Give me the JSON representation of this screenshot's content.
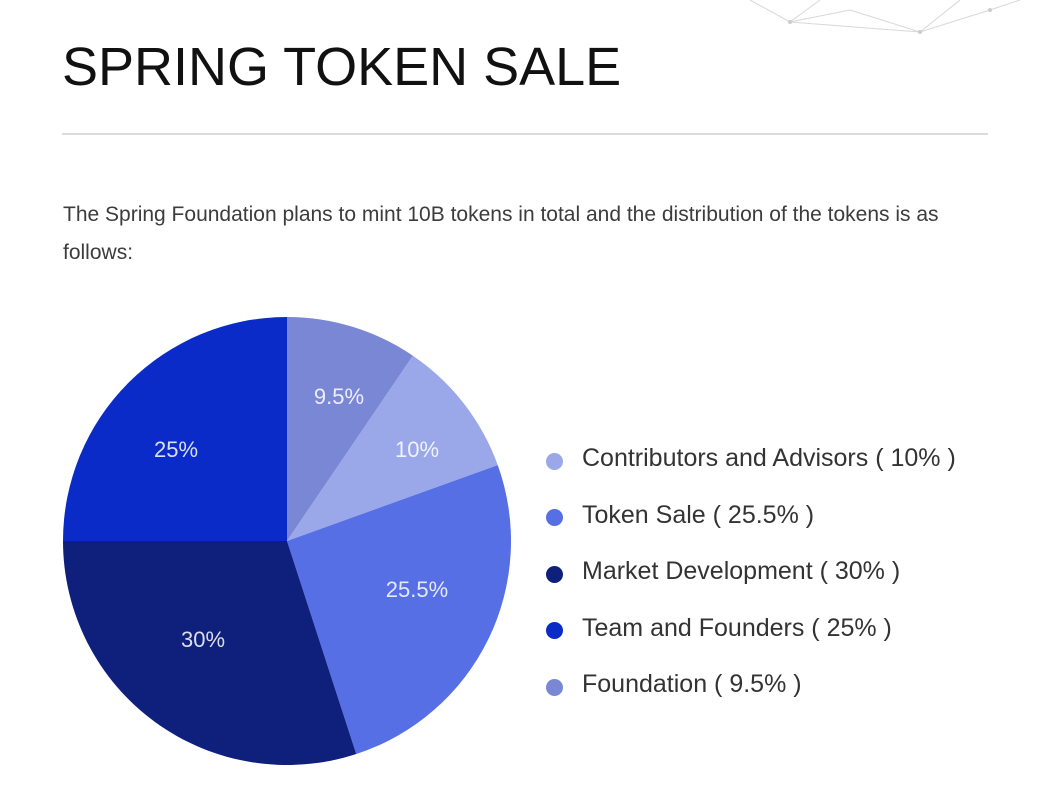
{
  "title": "SPRING TOKEN SALE",
  "intro": "The Spring Foundation plans to mint 10B tokens in total and the distribution of the tokens is as follows:",
  "chart_data": {
    "type": "pie",
    "title": "",
    "start": "Foundation slice starts at 12 o'clock, clockwise",
    "slices": [
      {
        "key": "foundation",
        "label": "Foundation ( 9.5% )",
        "value": 9.5,
        "data_label": "9.5%",
        "color": "#7a87d4"
      },
      {
        "key": "contributors",
        "label": "Contributors and Advisors ( 10% )",
        "value": 10,
        "data_label": "10%",
        "color": "#9aa7e8"
      },
      {
        "key": "token-sale",
        "label": "Token Sale ( 25.5% )",
        "value": 25.5,
        "data_label": "25.5%",
        "color": "#566fe4"
      },
      {
        "key": "market-development",
        "label": "Market Development ( 30% )",
        "value": 30,
        "data_label": "30%",
        "color": "#0f1f7c"
      },
      {
        "key": "team-founders",
        "label": "Team and Founders ( 25% )",
        "value": 25,
        "data_label": "25%",
        "color": "#0a2bc7"
      }
    ],
    "legend": {
      "placement": "right",
      "order": [
        "contributors",
        "token-sale",
        "market-development",
        "team-founders",
        "foundation"
      ]
    }
  }
}
